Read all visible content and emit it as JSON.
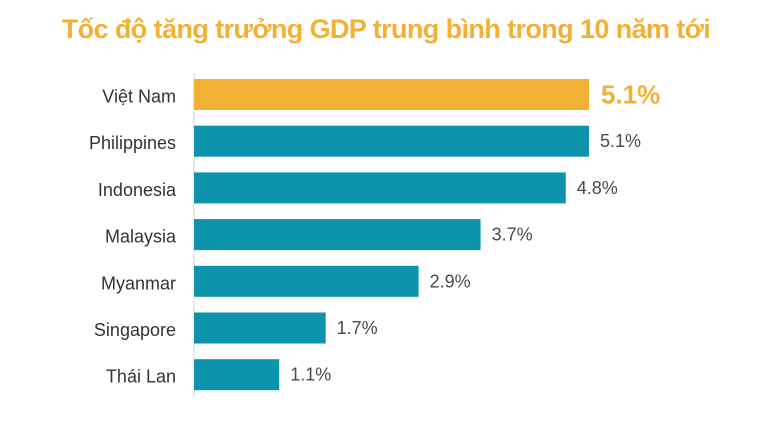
{
  "chart_data": {
    "type": "bar",
    "orientation": "horizontal",
    "title": "Tốc độ tăng trưởng GDP trung bình trong 10 năm tới",
    "categories": [
      "Việt Nam",
      "Philippines",
      "Indonesia",
      "Malaysia",
      "Myanmar",
      "Singapore",
      "Thái Lan"
    ],
    "values": [
      5.1,
      5.1,
      4.8,
      3.7,
      2.9,
      1.7,
      1.1
    ],
    "value_labels": [
      "5.1%",
      "5.1%",
      "4.8%",
      "3.7%",
      "2.9%",
      "1.7%",
      "1.1%"
    ],
    "highlight_index": 0,
    "xlim": [
      0,
      5.1
    ],
    "grid": false,
    "legend": "none",
    "colors": {
      "highlight": "#f2b134",
      "bar": "#0e93ad",
      "title": "#f2b134",
      "baseline": "#d6d6d6"
    }
  }
}
